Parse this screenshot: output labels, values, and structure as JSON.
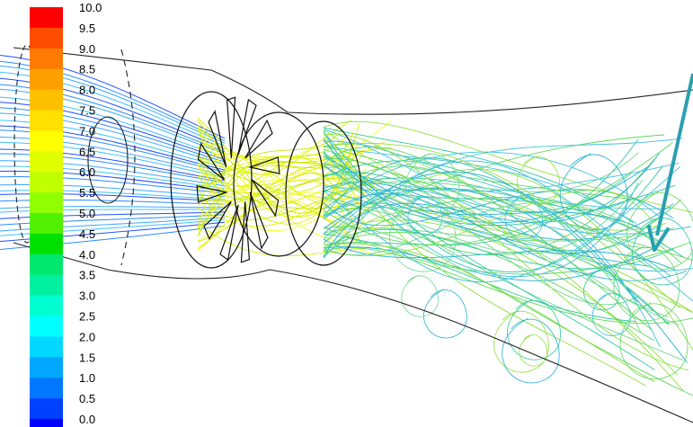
{
  "legend": {
    "ticks": [
      "10.0",
      "9.5",
      "9.0",
      "8.5",
      "8.0",
      "7.5",
      "7.0",
      "6.5",
      "6.0",
      "5.5",
      "5.0",
      "4.5",
      "4.0",
      "3.5",
      "3.0",
      "2.5",
      "2.0",
      "1.5",
      "1.0",
      "0.5",
      "0.0"
    ],
    "colors": [
      "#ff0000",
      "#ff4d00",
      "#ff7a00",
      "#ffa000",
      "#ffc000",
      "#ffe000",
      "#ffff00",
      "#e0ff00",
      "#c0ff00",
      "#90ff00",
      "#50f000",
      "#00e000",
      "#00e870",
      "#00f0a0",
      "#00ffd0",
      "#00ffff",
      "#00d8ff",
      "#00a8ff",
      "#0078ff",
      "#0040ff",
      "#0000ff"
    ]
  },
  "flow": {
    "palette": {
      "inlet": [
        "#2050ff",
        "#2a8cff",
        "#3aa8ff",
        "#40c0ff"
      ],
      "rotor": [
        "#d8f000",
        "#f0ff20",
        "#c8e800",
        "#e8f000"
      ],
      "wake": [
        "#30c8a0",
        "#60d860",
        "#40c0e0",
        "#90e040",
        "#20b0d0",
        "#70d890"
      ]
    }
  },
  "annotation": {
    "arrow_color": "#2aa0b0"
  }
}
